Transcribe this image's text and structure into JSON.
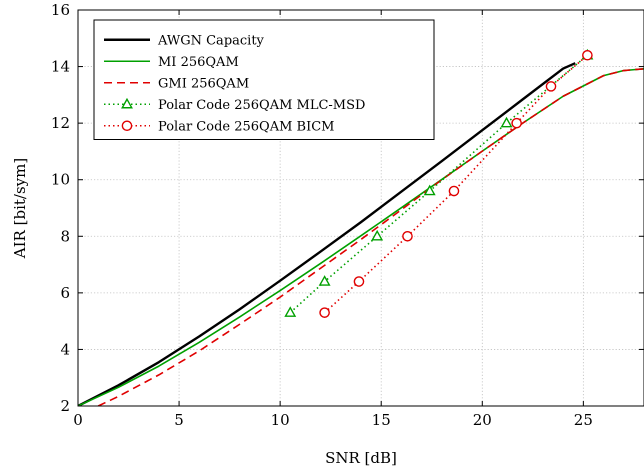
{
  "chart_data": {
    "type": "line",
    "xlabel": "SNR [dB]",
    "ylabel": "AIR [bit/sym]",
    "xlim": [
      0,
      28
    ],
    "ylim": [
      2,
      16
    ],
    "xticks": [
      0,
      5,
      10,
      15,
      20,
      25
    ],
    "yticks": [
      2,
      4,
      6,
      8,
      10,
      12,
      14,
      16
    ],
    "grid": true,
    "legend_position": "top-left",
    "series": [
      {
        "name": "AWGN Capacity",
        "color": "#000000",
        "line_style": "solid",
        "marker": "none",
        "x": [
          0,
          2,
          4,
          6,
          8,
          10,
          12,
          14,
          16,
          18,
          20,
          22,
          24,
          24.6
        ],
        "y": [
          2.0,
          2.73,
          3.55,
          4.46,
          5.42,
          6.43,
          7.46,
          8.5,
          9.58,
          10.66,
          11.75,
          12.84,
          13.93,
          14.12
        ]
      },
      {
        "name": "MI 256QAM",
        "color": "#00a000",
        "line_style": "solid",
        "marker": "none",
        "x": [
          0,
          2,
          4,
          6,
          8,
          10,
          12,
          14,
          16,
          18,
          20,
          22,
          24,
          26,
          27,
          28
        ],
        "y": [
          2.0,
          2.66,
          3.41,
          4.25,
          5.15,
          6.08,
          7.04,
          8.02,
          9.01,
          10.01,
          11.01,
          12.0,
          12.95,
          13.68,
          13.86,
          13.92
        ]
      },
      {
        "name": "GMI 256QAM",
        "color": "#e00000",
        "line_style": "dashed",
        "marker": "none",
        "x": [
          1,
          2,
          4,
          6,
          8,
          10,
          12,
          14,
          16,
          18,
          20,
          22,
          24,
          26,
          27,
          28
        ],
        "y": [
          2.0,
          2.34,
          3.1,
          3.95,
          4.89,
          5.85,
          6.87,
          7.89,
          8.94,
          10.0,
          11.01,
          12.0,
          12.95,
          13.68,
          13.86,
          13.92
        ]
      },
      {
        "name": "Polar Code 256QAM MLC-MSD",
        "color": "#00a000",
        "line_style": "dotted",
        "marker": "triangle",
        "x": [
          10.5,
          12.2,
          14.8,
          17.4,
          21.2,
          25.2
        ],
        "y": [
          5.3,
          6.4,
          8.0,
          9.6,
          12.0,
          14.4
        ]
      },
      {
        "name": "Polar Code 256QAM BICM",
        "color": "#e00000",
        "line_style": "dotted",
        "marker": "circle",
        "x": [
          12.2,
          13.9,
          16.3,
          18.6,
          21.7,
          23.4,
          25.2
        ],
        "y": [
          5.3,
          6.4,
          8.0,
          9.6,
          12.0,
          13.3,
          14.4
        ]
      }
    ]
  }
}
